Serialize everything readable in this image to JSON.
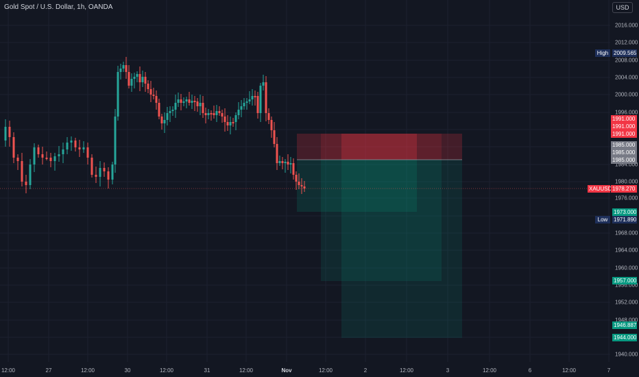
{
  "header": {
    "symbol_title": "Gold Spot / U.S. Dollar, 1h, OANDA",
    "currency_button": "USD"
  },
  "price_axis": {
    "ticks": [
      "2016.000",
      "2012.000",
      "2008.000",
      "2004.000",
      "2000.000",
      "1996.000",
      "1984.000",
      "1980.000",
      "1976.000",
      "1968.000",
      "1964.000",
      "1960.000",
      "1956.000",
      "1952.000",
      "1948.000",
      "1940.000"
    ],
    "high_label": "High",
    "high_value": "2009.565",
    "low_label": "Low",
    "low_value": "1971.890",
    "stop_levels": [
      "1991.000",
      "1991.000",
      "1991.000"
    ],
    "entry_levels": [
      "1985.000",
      "1985.000",
      "1985.000"
    ],
    "symbol_tag": "XAUUSD",
    "last_price": "1978.270",
    "target_levels": [
      "1973.000",
      "1957.000",
      "1946.887",
      "1944.000"
    ]
  },
  "time_axis": {
    "labels": [
      "12:00",
      "27",
      "12:00",
      "30",
      "12:00",
      "31",
      "12:00",
      "Nov",
      "12:00",
      "2",
      "12:00",
      "3",
      "12:00",
      "6",
      "12:00",
      "7"
    ]
  },
  "colors": {
    "background": "#131722",
    "up": "#26a69a",
    "down": "#ef5350",
    "stop_zone": "#f23645",
    "profit_zone": "#089981"
  }
}
